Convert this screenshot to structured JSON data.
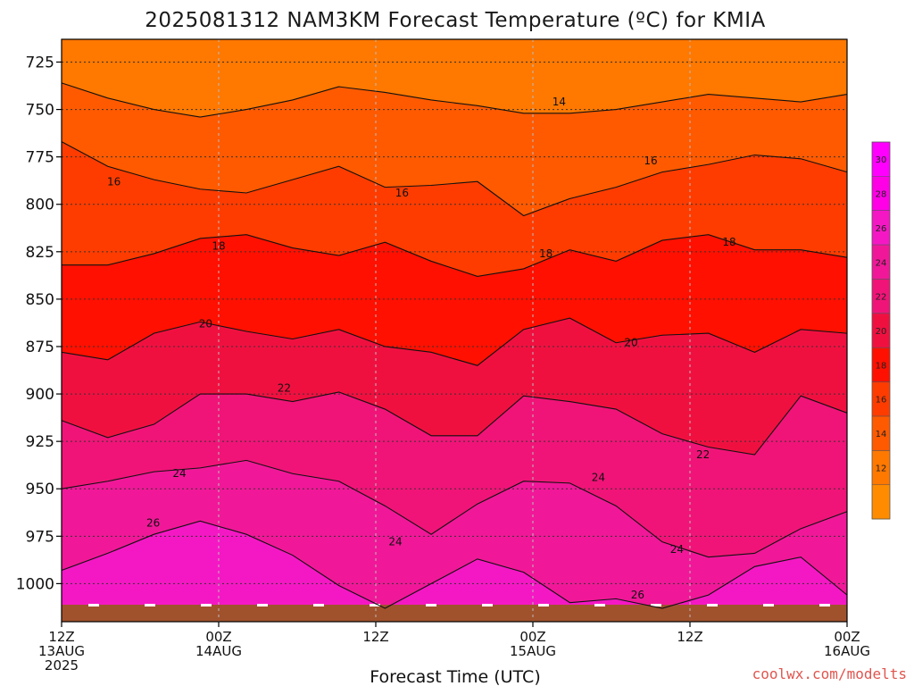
{
  "title": "2025081312 NAM3KM Forecast Temperature (ºC) for KMIA",
  "xlabel": "Forecast Time (UTC)",
  "credit": "coolwx.com/modelts",
  "chart_data": {
    "type": "heatmap",
    "title": "2025081312 NAM3KM Forecast Temperature (ºC) for KMIA",
    "xlabel": "Forecast Time (UTC)",
    "ylabel": "",
    "y_axis": {
      "inverted": true,
      "ticks": [
        725,
        750,
        775,
        800,
        825,
        850,
        875,
        900,
        925,
        950,
        975,
        1000
      ],
      "range": [
        713,
        1013
      ]
    },
    "x_axis": {
      "range_hours": [
        0,
        60
      ],
      "ticks": [
        {
          "hour": 0,
          "lines": [
            "12Z",
            "13AUG",
            "2025"
          ]
        },
        {
          "hour": 12,
          "lines": [
            "00Z",
            "14AUG"
          ]
        },
        {
          "hour": 24,
          "lines": [
            "12Z"
          ]
        },
        {
          "hour": 36,
          "lines": [
            "00Z",
            "15AUG"
          ]
        },
        {
          "hour": 48,
          "lines": [
            "12Z"
          ]
        },
        {
          "hour": 60,
          "lines": [
            "00Z",
            "16AUG"
          ]
        }
      ]
    },
    "grid": true,
    "colorbar": {
      "levels": [
        12,
        14,
        16,
        18,
        20,
        22,
        24,
        26,
        28,
        30
      ],
      "colors": [
        "#ff8c00",
        "#ff7800",
        "#ff5a00",
        "#ff3c00",
        "#ff1000",
        "#f01040",
        "#f01478",
        "#f01898",
        "#f418c4",
        "#ff00e6",
        "#ff00ff"
      ]
    },
    "isotherms": [
      {
        "value": 14,
        "pressure": [
          736,
          744,
          750,
          754,
          750,
          745,
          738,
          741,
          745,
          748,
          752,
          752,
          750,
          746,
          742,
          744,
          746,
          742
        ]
      },
      {
        "value": 16,
        "pressure": [
          767,
          780,
          787,
          792,
          794,
          787,
          780,
          791,
          790,
          788,
          806,
          797,
          791,
          783,
          779,
          774,
          776,
          783
        ]
      },
      {
        "value": 18,
        "pressure": [
          832,
          832,
          826,
          818,
          816,
          823,
          827,
          820,
          830,
          838,
          834,
          824,
          830,
          819,
          816,
          824,
          824,
          828
        ]
      },
      {
        "value": 20,
        "pressure": [
          878,
          882,
          868,
          862,
          867,
          871,
          866,
          875,
          878,
          885,
          866,
          860,
          873,
          869,
          868,
          878,
          866,
          868
        ]
      },
      {
        "value": 22,
        "pressure": [
          914,
          923,
          916,
          900,
          900,
          904,
          899,
          908,
          922,
          922,
          901,
          904,
          908,
          921,
          928,
          932,
          901,
          910
        ]
      },
      {
        "value": 24,
        "pressure": [
          950,
          946,
          941,
          939,
          935,
          942,
          946,
          959,
          974,
          958,
          946,
          947,
          959,
          978,
          986,
          984,
          971,
          962
        ]
      },
      {
        "value": 26,
        "pressure": [
          993,
          984,
          974,
          967,
          974,
          985,
          1001,
          1013,
          1000,
          987,
          994,
          1010,
          1008,
          1013,
          1006,
          991,
          986,
          1006
        ]
      }
    ],
    "contour_labels": [
      {
        "text": "14",
        "hour": 38.0,
        "pressure": 746
      },
      {
        "text": "16",
        "hour": 4.0,
        "pressure": 788
      },
      {
        "text": "16",
        "hour": 26.0,
        "pressure": 794
      },
      {
        "text": "16",
        "hour": 45.0,
        "pressure": 777
      },
      {
        "text": "18",
        "hour": 12.0,
        "pressure": 822
      },
      {
        "text": "18",
        "hour": 37.0,
        "pressure": 826
      },
      {
        "text": "18",
        "hour": 51.0,
        "pressure": 820
      },
      {
        "text": "20",
        "hour": 11.0,
        "pressure": 863
      },
      {
        "text": "20",
        "hour": 43.5,
        "pressure": 873
      },
      {
        "text": "22",
        "hour": 17.0,
        "pressure": 897
      },
      {
        "text": "22",
        "hour": 49.0,
        "pressure": 932
      },
      {
        "text": "24",
        "hour": 9.0,
        "pressure": 942
      },
      {
        "text": "24",
        "hour": 25.5,
        "pressure": 978
      },
      {
        "text": "24",
        "hour": 41.0,
        "pressure": 944
      },
      {
        "text": "24",
        "hour": 47.0,
        "pressure": 982
      },
      {
        "text": "26",
        "hour": 7.0,
        "pressure": 968
      },
      {
        "text": "26",
        "hour": 44.0,
        "pressure": 1006
      }
    ],
    "ground_color": "#a0522d"
  }
}
